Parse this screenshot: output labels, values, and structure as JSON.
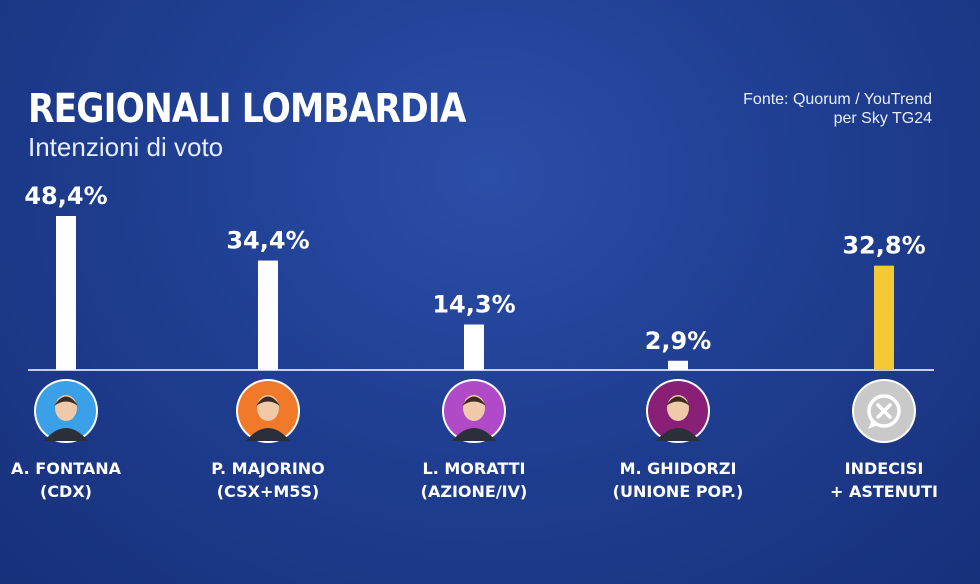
{
  "header": {
    "title": "REGIONALI LOMBARDIA",
    "subtitle": "Intenzioni di voto",
    "source_line1": "Fonte: Quorum / YouTrend",
    "source_line2": "per Sky TG24"
  },
  "colors": {
    "bar_default": "#ffffff",
    "bar_undecided": "#f5c936",
    "baseline": "#ffffff"
  },
  "chart_data": {
    "type": "bar",
    "title": "REGIONALI LOMBARDIA",
    "subtitle": "Intenzioni di voto",
    "categories": [
      "A. FONTANA (CDX)",
      "P. MAJORINO (CSX+M5S)",
      "L. MORATTI (AZIONE/IV)",
      "M. GHIDORZI (UNIONE POP.)",
      "INDECISI + ASTENUTI"
    ],
    "values": [
      48.4,
      34.4,
      14.3,
      2.9,
      32.8
    ],
    "value_labels": [
      "48,4%",
      "34,4%",
      "14,3%",
      "2,9%",
      "32,8%"
    ],
    "names": [
      "A. FONTANA",
      "P. MAJORINO",
      "L. MORATTI",
      "M. GHIDORZI",
      "INDECISI"
    ],
    "parties": [
      "(CDX)",
      "(CSX+M5S)",
      "(AZIONE/IV)",
      "(UNIONE POP.)",
      "+ ASTENUTI"
    ],
    "avatar_bg": [
      "#3aa0e8",
      "#f07a2a",
      "#b04ac8",
      "#8a1f78",
      "#c9c9c9"
    ],
    "highlight_index": 4,
    "ylim": [
      0,
      50
    ],
    "grid": false,
    "legend": "none"
  }
}
